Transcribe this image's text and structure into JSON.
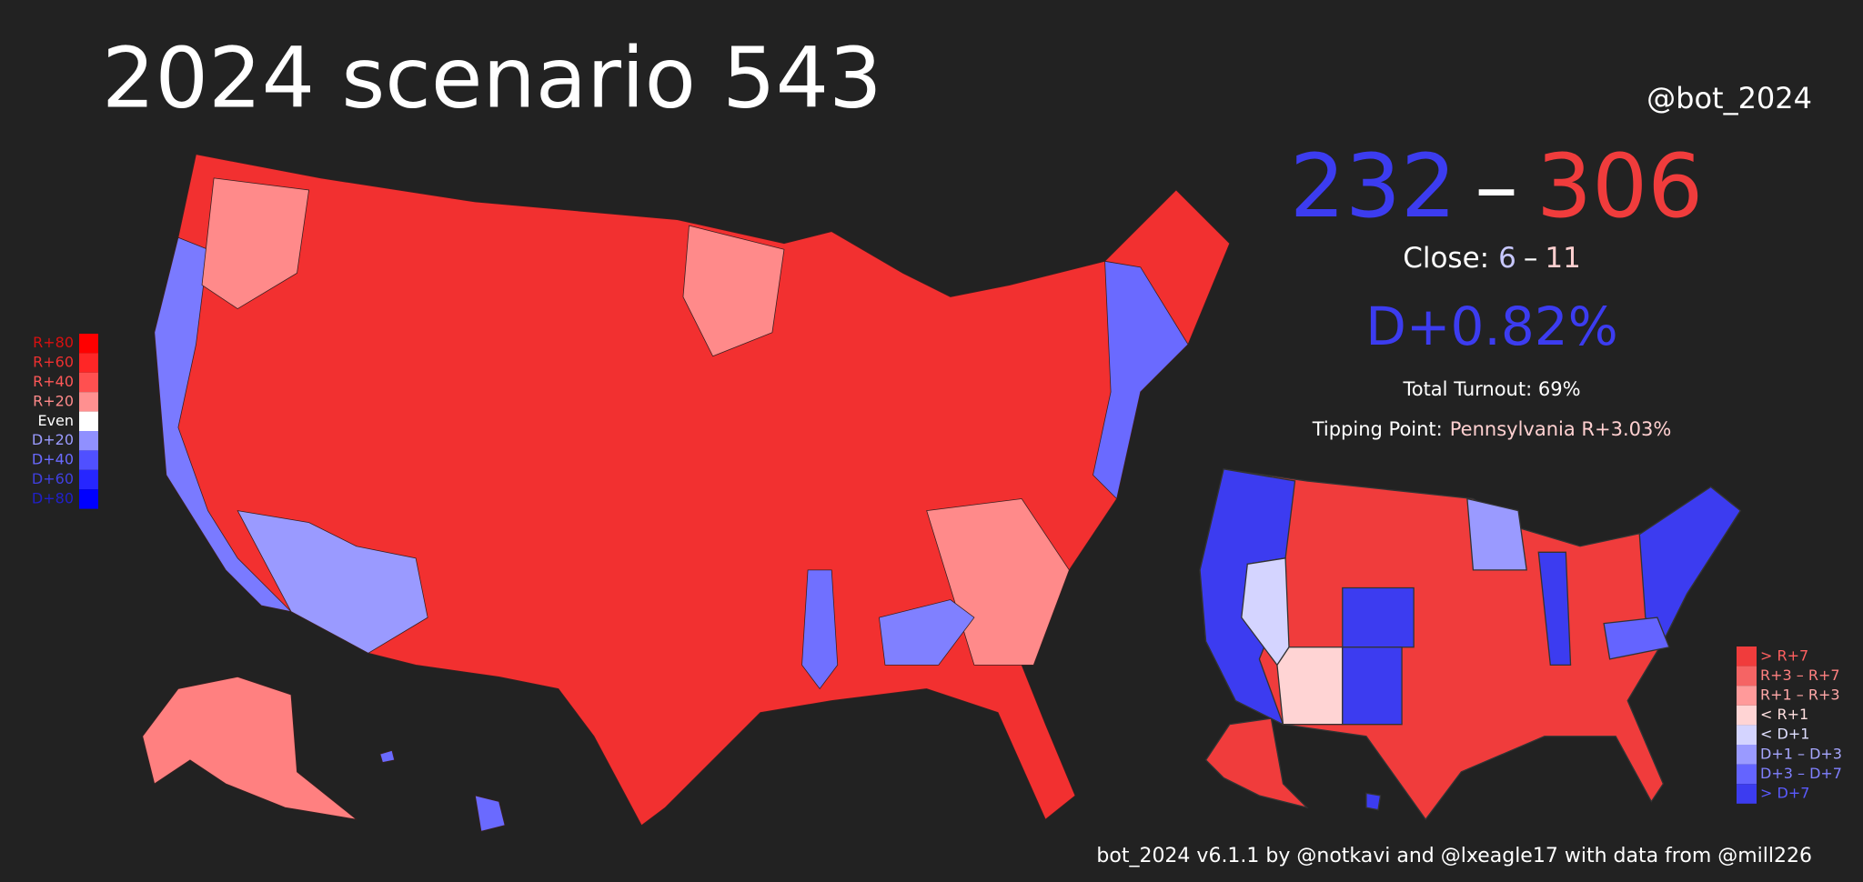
{
  "header": {
    "title": "2024 scenario 543",
    "handle": "@bot_2024"
  },
  "summary": {
    "dem_ev": "232",
    "separator": "–",
    "rep_ev": "306",
    "close_label": "Close:",
    "close_dem": "6",
    "close_separator": "–",
    "close_rep": "11",
    "margin": "D+0.82%",
    "turnout": "Total Turnout: 69%",
    "tipping_label": "Tipping Point:",
    "tipping_value": "Pennsylvania R+3.03%"
  },
  "county_legend": {
    "items": [
      {
        "label": "R+80",
        "color": "#ff0000",
        "text_color": "#d81010"
      },
      {
        "label": "R+60",
        "color": "#ff2626",
        "text_color": "#ee3030"
      },
      {
        "label": "R+40",
        "color": "#ff5050",
        "text_color": "#ff5858"
      },
      {
        "label": "R+20",
        "color": "#ff9090",
        "text_color": "#ff8a8a"
      },
      {
        "label": "Even",
        "color": "#ffffff",
        "text_color": "#ffffff"
      },
      {
        "label": "D+20",
        "color": "#9090ff",
        "text_color": "#9a9aff"
      },
      {
        "label": "D+40",
        "color": "#5050ff",
        "text_color": "#6a6aff"
      },
      {
        "label": "D+60",
        "color": "#2626ff",
        "text_color": "#4040e0"
      },
      {
        "label": "D+80",
        "color": "#0000ff",
        "text_color": "#2020c8"
      }
    ]
  },
  "state_legend": {
    "items": [
      {
        "label": "> R+7",
        "color": "#f03c3c",
        "text_color": "#ff6060"
      },
      {
        "label": "R+3 – R+7",
        "color": "#f56464",
        "text_color": "#ff8080"
      },
      {
        "label": "R+1 – R+3",
        "color": "#ff9a9a",
        "text_color": "#ffa8a8"
      },
      {
        "label": "< R+1",
        "color": "#ffd4d4",
        "text_color": "#ffe0e0"
      },
      {
        "label": "< D+1",
        "color": "#d4d4ff",
        "text_color": "#e0e0ff"
      },
      {
        "label": "D+1 – D+3",
        "color": "#9a9aff",
        "text_color": "#a8a8ff"
      },
      {
        "label": "D+3 – D+7",
        "color": "#6464ff",
        "text_color": "#8080ff"
      },
      {
        "label": "> D+7",
        "color": "#3c3cf0",
        "text_color": "#5a5aff"
      }
    ]
  },
  "footer": "bot_2024 v6.1.1 by @notkavi and @lxeagle17 with data from @mill226"
}
